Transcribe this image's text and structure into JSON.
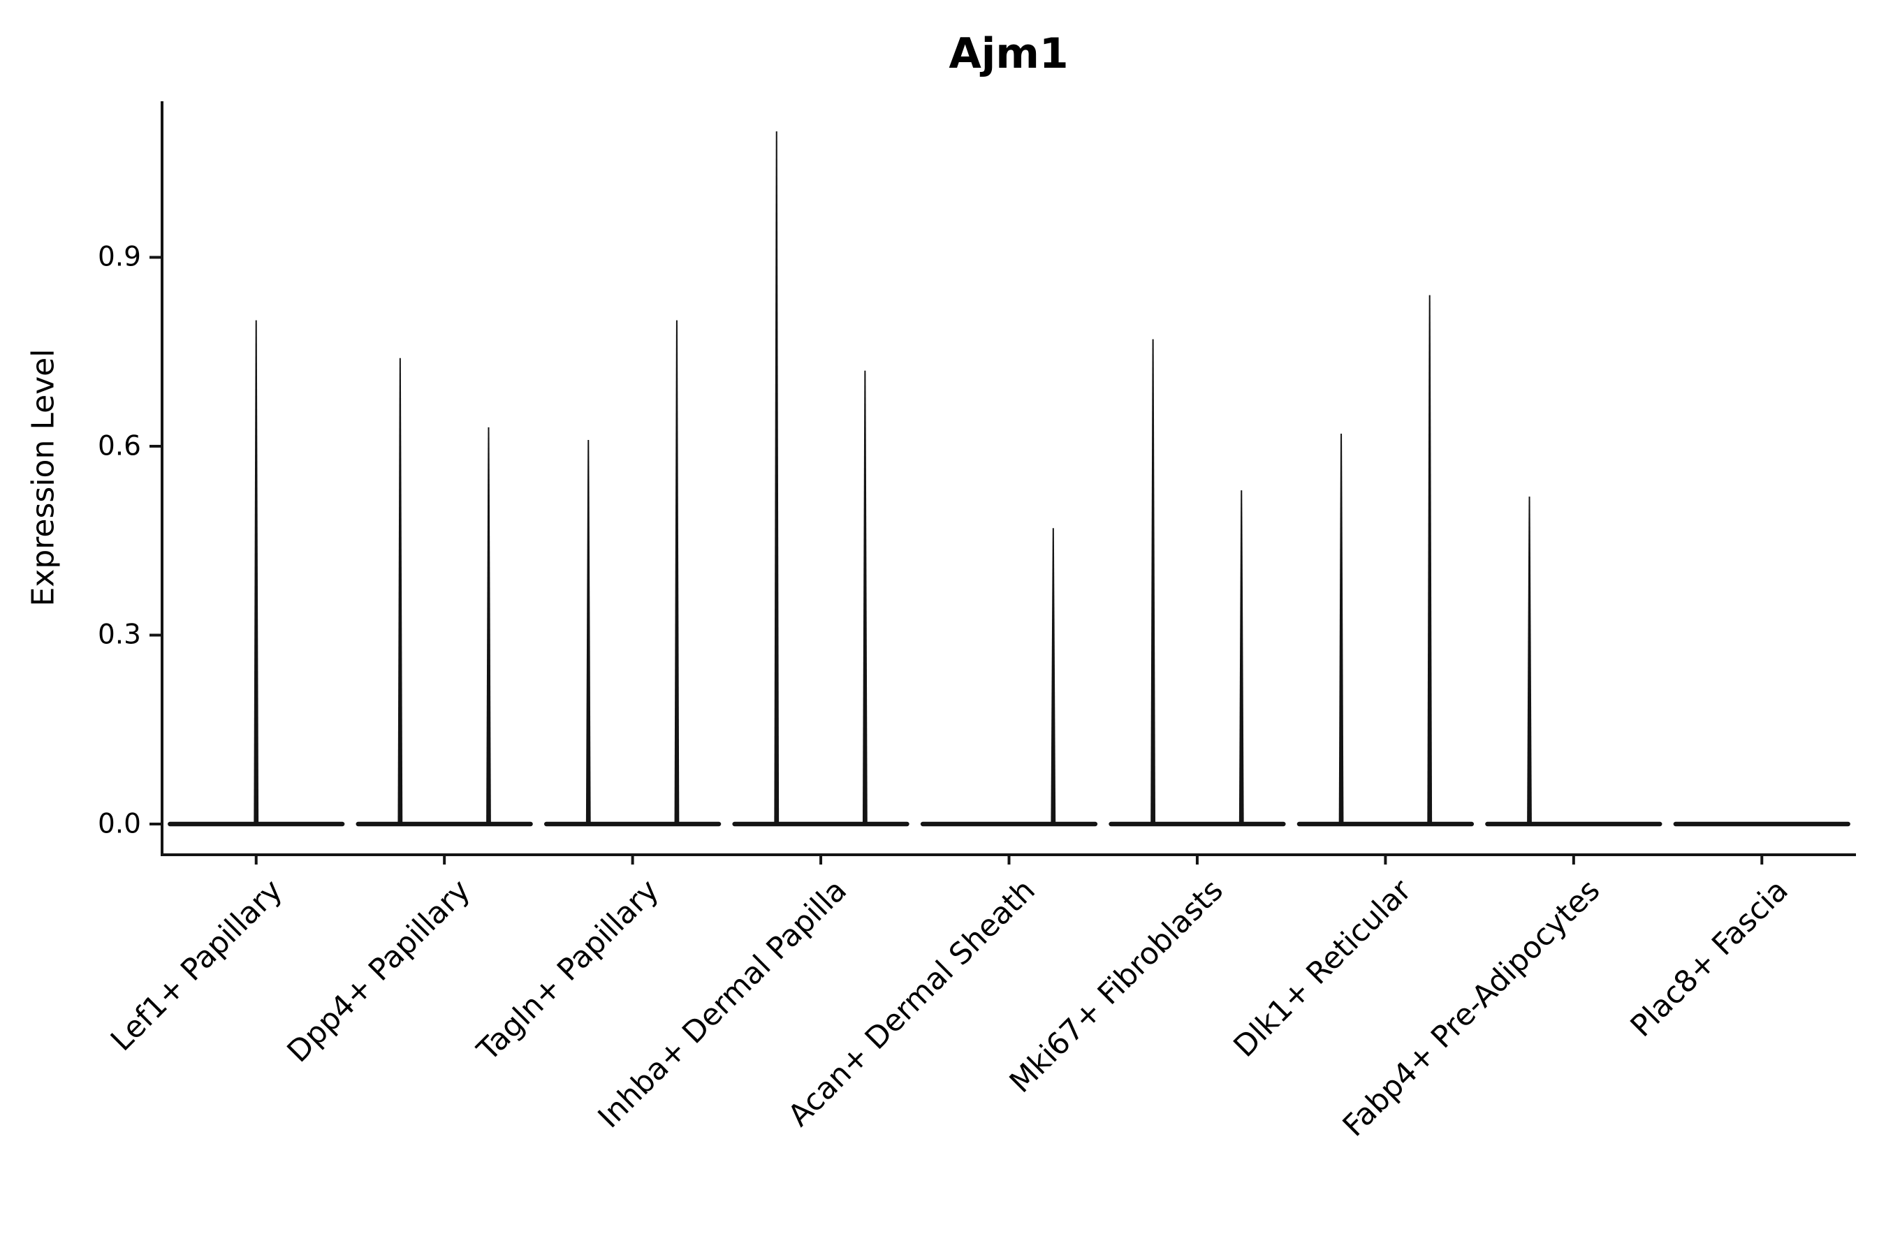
{
  "figure": {
    "title": "Ajm1",
    "ylabel": "Expression Level"
  },
  "chart_data": {
    "type": "violin",
    "title": "Ajm1",
    "xlabel": "",
    "ylabel": "Expression Level",
    "ylim": [
      0,
      1.15
    ],
    "ytick_labels": [
      "0.0",
      "0.3",
      "0.6",
      "0.9"
    ],
    "ytick_values": [
      0.0,
      0.3,
      0.6,
      0.9
    ],
    "grid": false,
    "legend": "none",
    "categories": [
      "Lef1+ Papillary",
      "Dpp4+ Papillary",
      "Tagln+ Papillary",
      "Inhba+ Dermal Papilla",
      "Acan+ Dermal Sheath",
      "Mki67+ Fibroblasts",
      "Dlk1+ Reticular",
      "Fabp4+ Pre-Adipocytes",
      "Plac8+ Fascia"
    ],
    "violins": [
      {
        "category": "Lef1+ Papillary",
        "baseline": 0.0,
        "spikes": [
          {
            "slot": "center",
            "max": 0.8
          }
        ]
      },
      {
        "category": "Dpp4+ Papillary",
        "baseline": 0.0,
        "spikes": [
          {
            "slot": "left",
            "max": 0.74
          },
          {
            "slot": "right",
            "max": 0.63
          }
        ]
      },
      {
        "category": "Tagln+ Papillary",
        "baseline": 0.0,
        "spikes": [
          {
            "slot": "left",
            "max": 0.61
          },
          {
            "slot": "right",
            "max": 0.8
          }
        ]
      },
      {
        "category": "Inhba+ Dermal Papilla",
        "baseline": 0.0,
        "spikes": [
          {
            "slot": "left",
            "max": 1.1
          },
          {
            "slot": "right",
            "max": 0.72
          }
        ]
      },
      {
        "category": "Acan+ Dermal Sheath",
        "baseline": 0.0,
        "spikes": [
          {
            "slot": "right",
            "max": 0.47
          }
        ]
      },
      {
        "category": "Mki67+ Fibroblasts",
        "baseline": 0.0,
        "spikes": [
          {
            "slot": "left",
            "max": 0.77
          },
          {
            "slot": "right",
            "max": 0.53
          }
        ]
      },
      {
        "category": "Dlk1+ Reticular",
        "baseline": 0.0,
        "spikes": [
          {
            "slot": "left",
            "max": 0.62
          },
          {
            "slot": "right",
            "max": 0.84
          }
        ]
      },
      {
        "category": "Fabp4+ Pre-Adipocytes",
        "baseline": 0.0,
        "spikes": [
          {
            "slot": "left",
            "max": 0.52
          }
        ]
      },
      {
        "category": "Plac8+ Fascia",
        "baseline": 0.0,
        "spikes": []
      }
    ],
    "colors": {
      "line": "#141414",
      "text": "#000000",
      "background": "#ffffff"
    }
  }
}
